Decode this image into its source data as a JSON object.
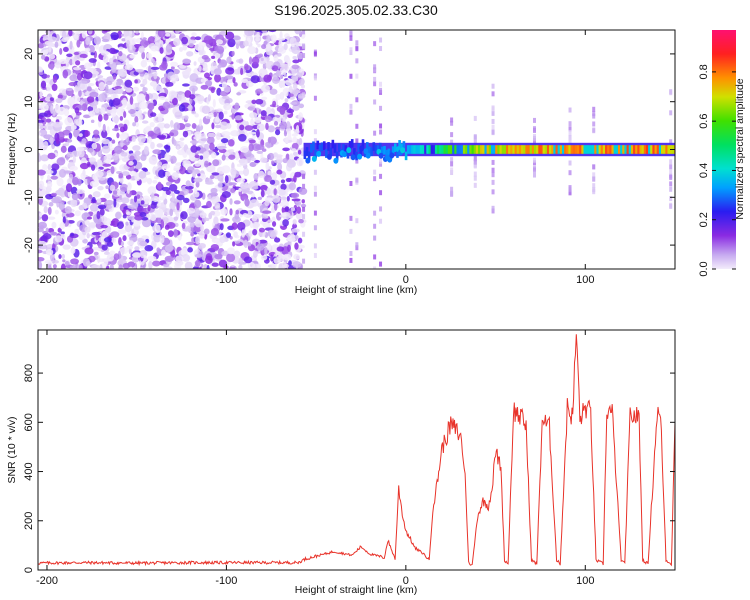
{
  "title": "S196.2025.305.02.33.C30",
  "chart_data": [
    {
      "type": "heatmap",
      "name": "spectrogram",
      "xlabel": "Height of straight line (km)",
      "ylabel": "Frequency (Hz)",
      "xlim": [
        -205,
        150
      ],
      "ylim": [
        -25,
        25
      ],
      "x_ticks": [
        -200,
        -100,
        0,
        100
      ],
      "y_ticks": [
        -20,
        -10,
        0,
        10,
        20
      ],
      "colorbar": {
        "label": "Normalized spectral amplitude",
        "range": [
          0,
          0.97
        ],
        "ticks": [
          0.0,
          0.2,
          0.4,
          0.6,
          0.8
        ]
      },
      "features": {
        "noise_region_x": [
          -205,
          -57
        ],
        "signal_onset_x": -57,
        "signal_frequency_hz": 0,
        "carrier_strength_profile": [
          {
            "x": -57,
            "value": 0.3
          },
          {
            "x": -30,
            "value": 0.28
          },
          {
            "x": 0,
            "value": 0.38
          },
          {
            "x": 20,
            "value": 0.6
          },
          {
            "x": 40,
            "value": 0.8
          },
          {
            "x": 95,
            "value": 0.9
          },
          {
            "x": 150,
            "value": 0.88
          }
        ]
      }
    },
    {
      "type": "line",
      "name": "snr",
      "xlabel": "Height of straight line (km)",
      "ylabel": "SNR (10 * v/v)",
      "xlim": [
        -205,
        150
      ],
      "ylim": [
        0,
        975
      ],
      "x_ticks": [
        -200,
        -100,
        0,
        100
      ],
      "y_ticks": [
        0,
        200,
        400,
        600,
        800
      ],
      "color": "#e8332a",
      "series": [
        {
          "name": "SNR",
          "x": [
            -205,
            -180,
            -150,
            -120,
            -90,
            -60,
            -56,
            -40,
            -30,
            -25,
            -20,
            -12,
            -10,
            -6,
            -4,
            -2,
            0,
            3,
            5,
            10,
            13,
            15,
            17,
            20,
            25,
            28,
            31,
            33,
            35,
            37,
            40,
            43,
            46,
            48,
            50,
            53,
            55,
            57,
            60,
            64,
            67,
            70,
            73,
            76,
            80,
            84,
            86,
            90,
            93,
            95,
            97,
            100,
            103,
            106,
            110,
            112,
            115,
            120,
            122,
            125,
            130,
            132,
            135,
            140,
            142,
            145,
            148,
            150
          ],
          "y": [
            28,
            30,
            28,
            30,
            30,
            30,
            45,
            75,
            60,
            95,
            65,
            50,
            120,
            45,
            330,
            230,
            160,
            120,
            90,
            65,
            40,
            250,
            330,
            490,
            590,
            570,
            530,
            380,
            30,
            20,
            220,
            280,
            260,
            330,
            480,
            420,
            40,
            25,
            650,
            620,
            590,
            40,
            25,
            610,
            580,
            40,
            25,
            660,
            620,
            975,
            610,
            660,
            640,
            40,
            25,
            650,
            640,
            40,
            25,
            630,
            620,
            40,
            25,
            640,
            620,
            40,
            25,
            600
          ]
        }
      ]
    }
  ]
}
